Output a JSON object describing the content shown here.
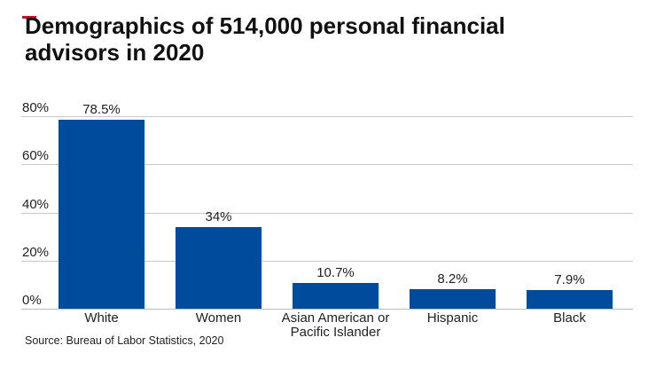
{
  "page": {
    "accent_color": "#c8102e",
    "background_color": "#ffffff"
  },
  "header": {
    "title": "Demographics of 514,000 personal financial advisors in 2020"
  },
  "chart_data": {
    "type": "bar",
    "title": "Demographics of 514,000 personal financial advisors in 2020",
    "categories": [
      "White",
      "Women",
      "Asian American or Pacific Islander",
      "Hispanic",
      "Black"
    ],
    "values": [
      78.5,
      34,
      10.7,
      8.2,
      7.9
    ],
    "value_labels": [
      "78.5%",
      "34%",
      "10.7%",
      "8.2%",
      "7.9%"
    ],
    "unit": "%",
    "ylim": [
      0,
      80
    ],
    "yticks": [
      0,
      20,
      40,
      60,
      80
    ],
    "ytick_labels": [
      "0%",
      "20%",
      "40%",
      "60%",
      "80%"
    ],
    "grid": "horizontal-only",
    "legend": "none",
    "bar_color": "#004b9b",
    "gridline_color": "#c9c9c9"
  },
  "footer": {
    "source": "Source: Bureau of Labor Statistics, 2020"
  }
}
